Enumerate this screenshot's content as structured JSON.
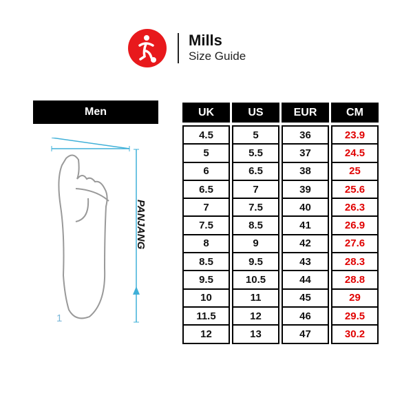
{
  "header": {
    "brand": "Mills",
    "subtitle": "Size Guide",
    "logo_color": "#e8191c"
  },
  "section_label": "Men",
  "foot_diagram": {
    "length_label": "PANJANG",
    "marker": "1",
    "accent": "#3fb0d8"
  },
  "table": {
    "columns": [
      "UK",
      "US",
      "EUR",
      "CM"
    ],
    "rows": [
      [
        "4.5",
        "5",
        "36",
        "23.9"
      ],
      [
        "5",
        "5.5",
        "37",
        "24.5"
      ],
      [
        "6",
        "6.5",
        "38",
        "25"
      ],
      [
        "6.5",
        "7",
        "39",
        "25.6"
      ],
      [
        "7",
        "7.5",
        "40",
        "26.3"
      ],
      [
        "7.5",
        "8.5",
        "41",
        "26.9"
      ],
      [
        "8",
        "9",
        "42",
        "27.6"
      ],
      [
        "8.5",
        "9.5",
        "43",
        "28.3"
      ],
      [
        "9.5",
        "10.5",
        "44",
        "28.8"
      ],
      [
        "10",
        "11",
        "45",
        "29"
      ],
      [
        "11.5",
        "12",
        "46",
        "29.5"
      ],
      [
        "12",
        "13",
        "47",
        "30.2"
      ]
    ],
    "cm_color": "#e00000"
  }
}
